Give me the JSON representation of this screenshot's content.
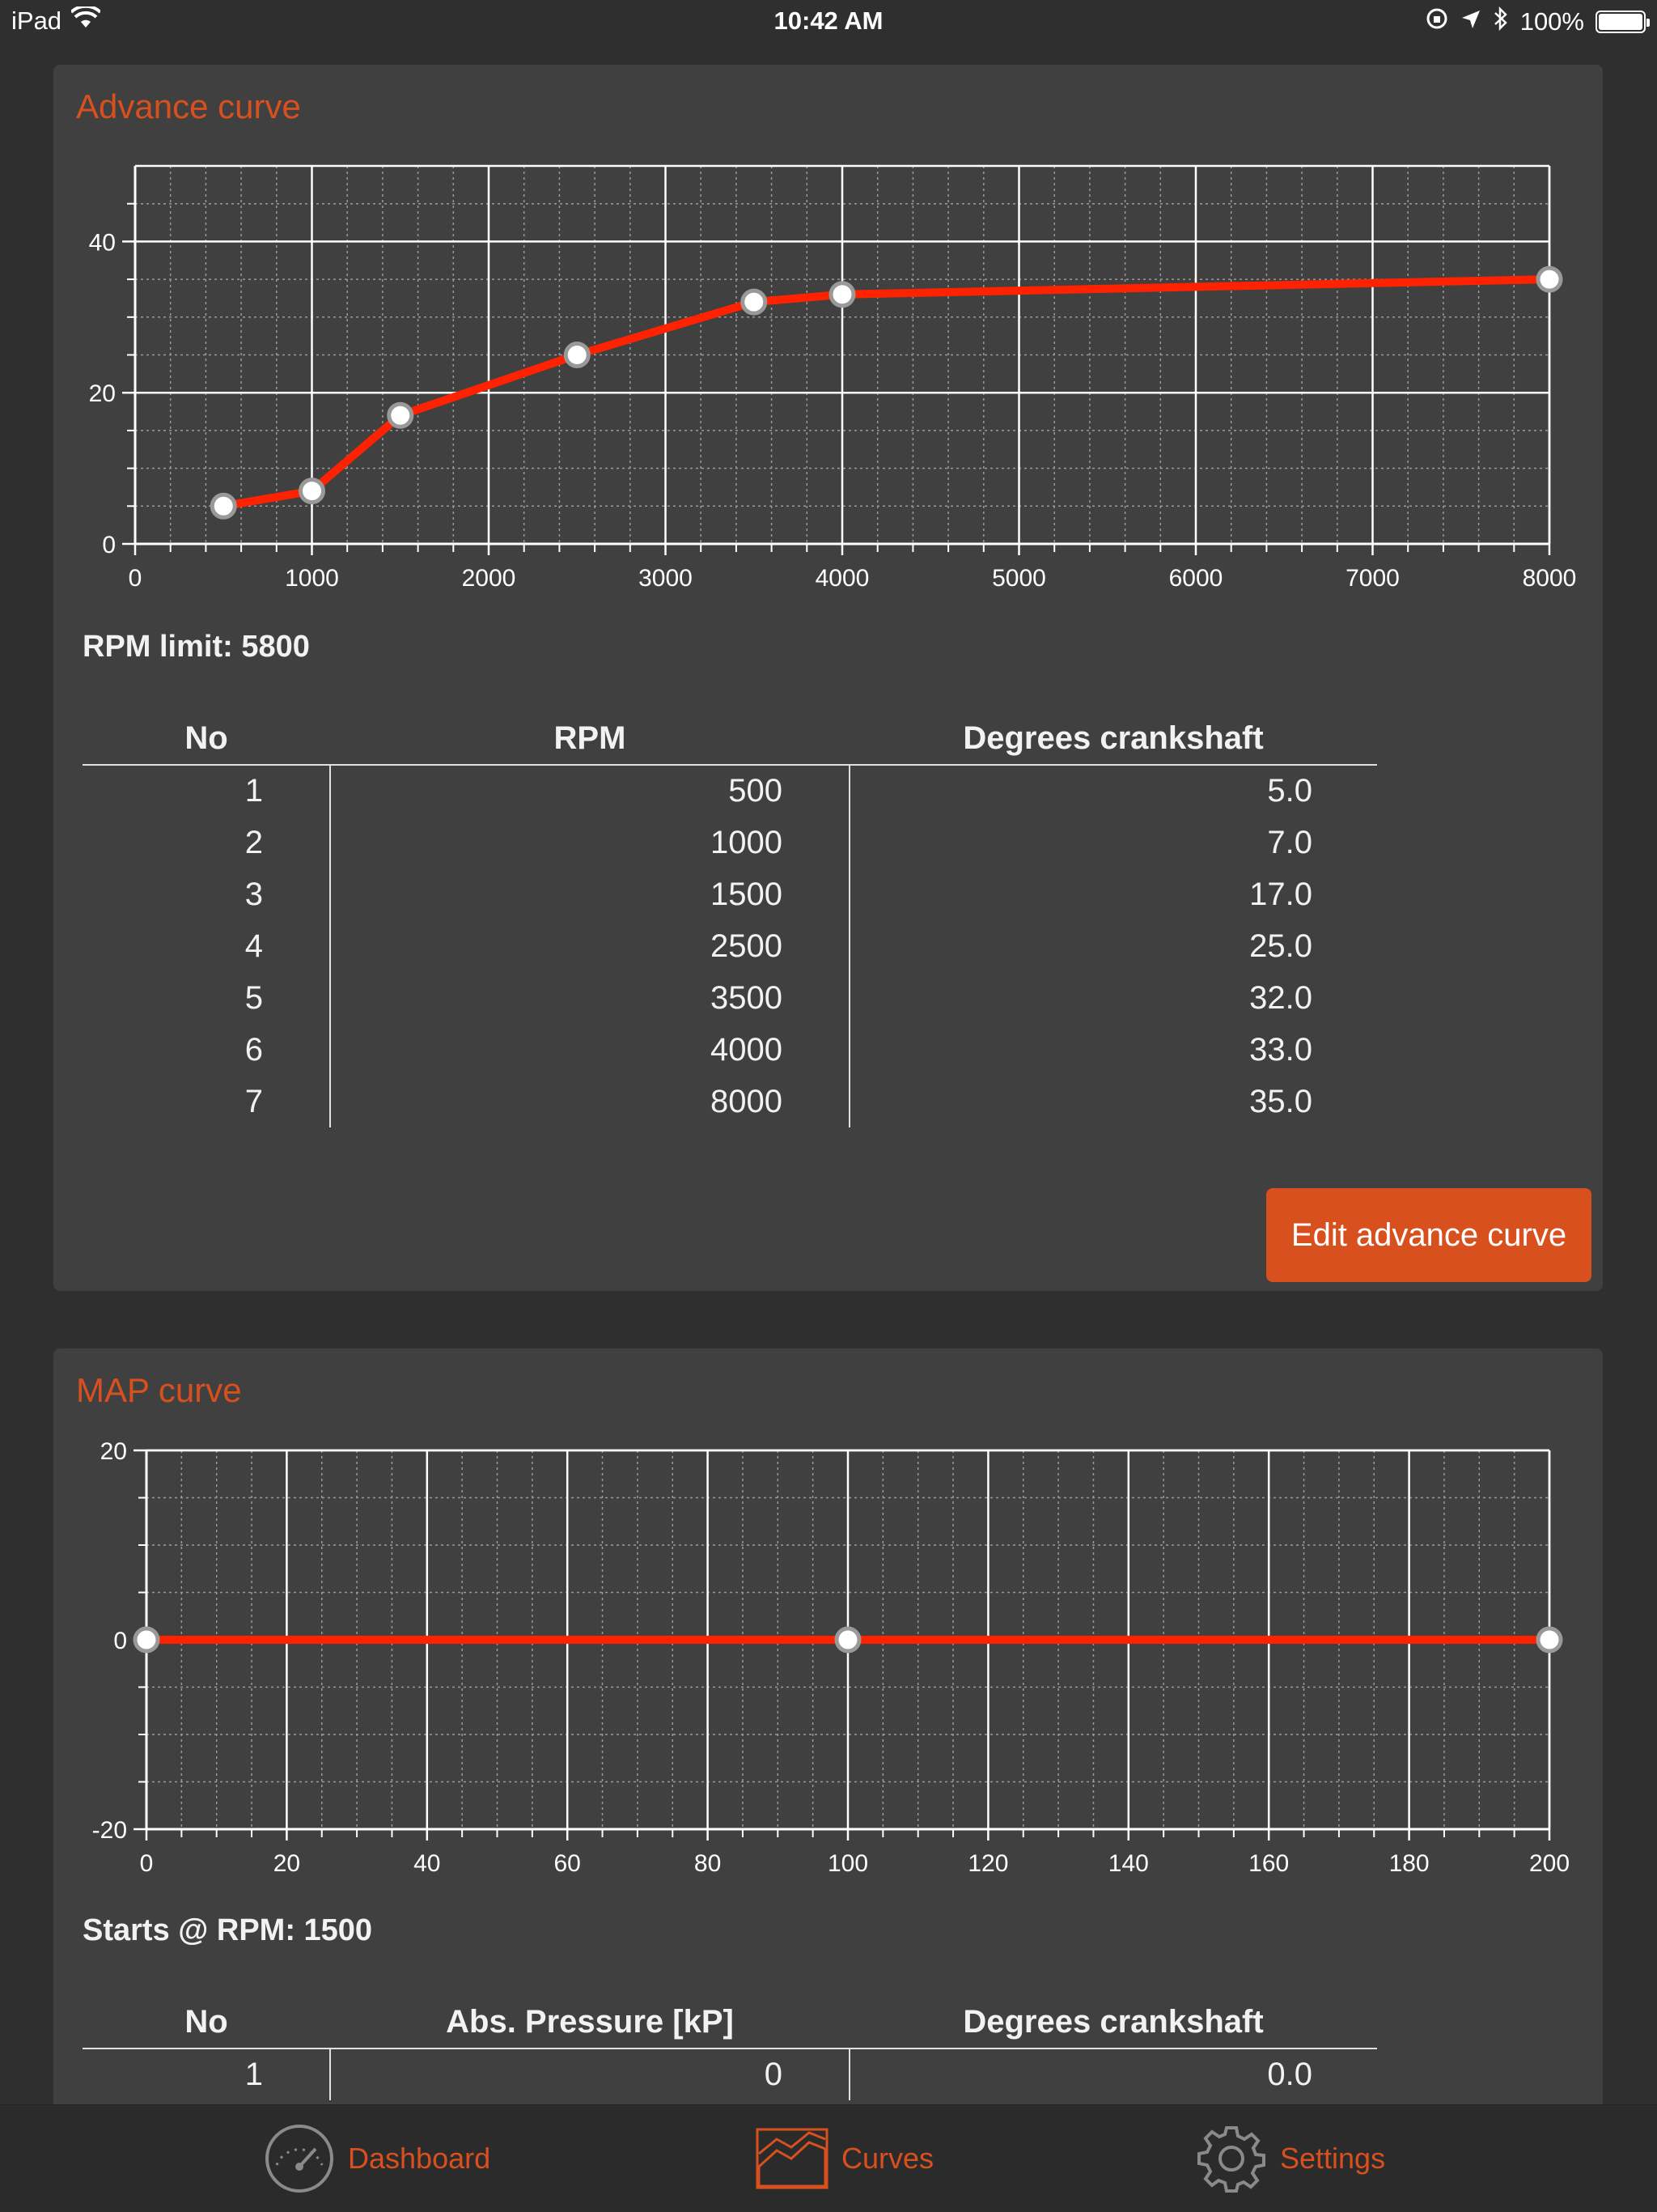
{
  "status_bar": {
    "device": "iPad",
    "time": "10:42 AM",
    "battery": "100%",
    "battery_level": 1.0
  },
  "advance": {
    "title": "Advance curve",
    "rpm_limit_label": "RPM limit: 5800",
    "table": {
      "headers": [
        "No",
        "RPM",
        "Degrees crankshaft"
      ],
      "rows": [
        [
          "1",
          "500",
          "5.0"
        ],
        [
          "2",
          "1000",
          "7.0"
        ],
        [
          "3",
          "1500",
          "17.0"
        ],
        [
          "4",
          "2500",
          "25.0"
        ],
        [
          "5",
          "3500",
          "32.0"
        ],
        [
          "6",
          "4000",
          "33.0"
        ],
        [
          "7",
          "8000",
          "35.0"
        ]
      ]
    },
    "edit_button": "Edit advance curve"
  },
  "map": {
    "title": "MAP curve",
    "starts_label": "Starts @ RPM: 1500",
    "table": {
      "headers": [
        "No",
        "Abs. Pressure [kP]",
        "Degrees crankshaft"
      ],
      "rows": [
        [
          "1",
          "0",
          "0.0"
        ]
      ]
    }
  },
  "tabs": [
    {
      "label": "Dashboard",
      "icon": "speedometer-icon"
    },
    {
      "label": "Curves",
      "icon": "curve-chart-icon"
    },
    {
      "label": "Settings",
      "icon": "gear-icon"
    }
  ],
  "colors": {
    "accent": "#d9501f",
    "line": "#ff2200",
    "panel": "#404040",
    "background": "#2f2f2f"
  },
  "chart_data": [
    {
      "type": "line",
      "x": [
        500,
        1000,
        1500,
        2500,
        3500,
        4000,
        8000
      ],
      "series": [
        {
          "values": [
            5,
            7,
            17,
            25,
            32,
            33,
            35
          ]
        }
      ],
      "xlim": [
        0,
        8000
      ],
      "ylim": [
        0,
        50
      ],
      "xticks": [
        "0",
        "1000",
        "2000",
        "3000",
        "4000",
        "5000",
        "6000",
        "7000",
        "8000"
      ],
      "yticks": [
        "0",
        "20",
        "40"
      ],
      "grid": true
    },
    {
      "type": "line",
      "x": [
        0,
        100,
        200
      ],
      "series": [
        {
          "values": [
            0,
            0,
            0
          ]
        }
      ],
      "xlim": [
        0,
        200
      ],
      "ylim": [
        -20,
        20
      ],
      "xticks": [
        "0",
        "20",
        "40",
        "60",
        "80",
        "100",
        "120",
        "140",
        "160",
        "180",
        "200"
      ],
      "yticks": [
        "-20",
        "0",
        "20"
      ],
      "grid": true
    }
  ]
}
